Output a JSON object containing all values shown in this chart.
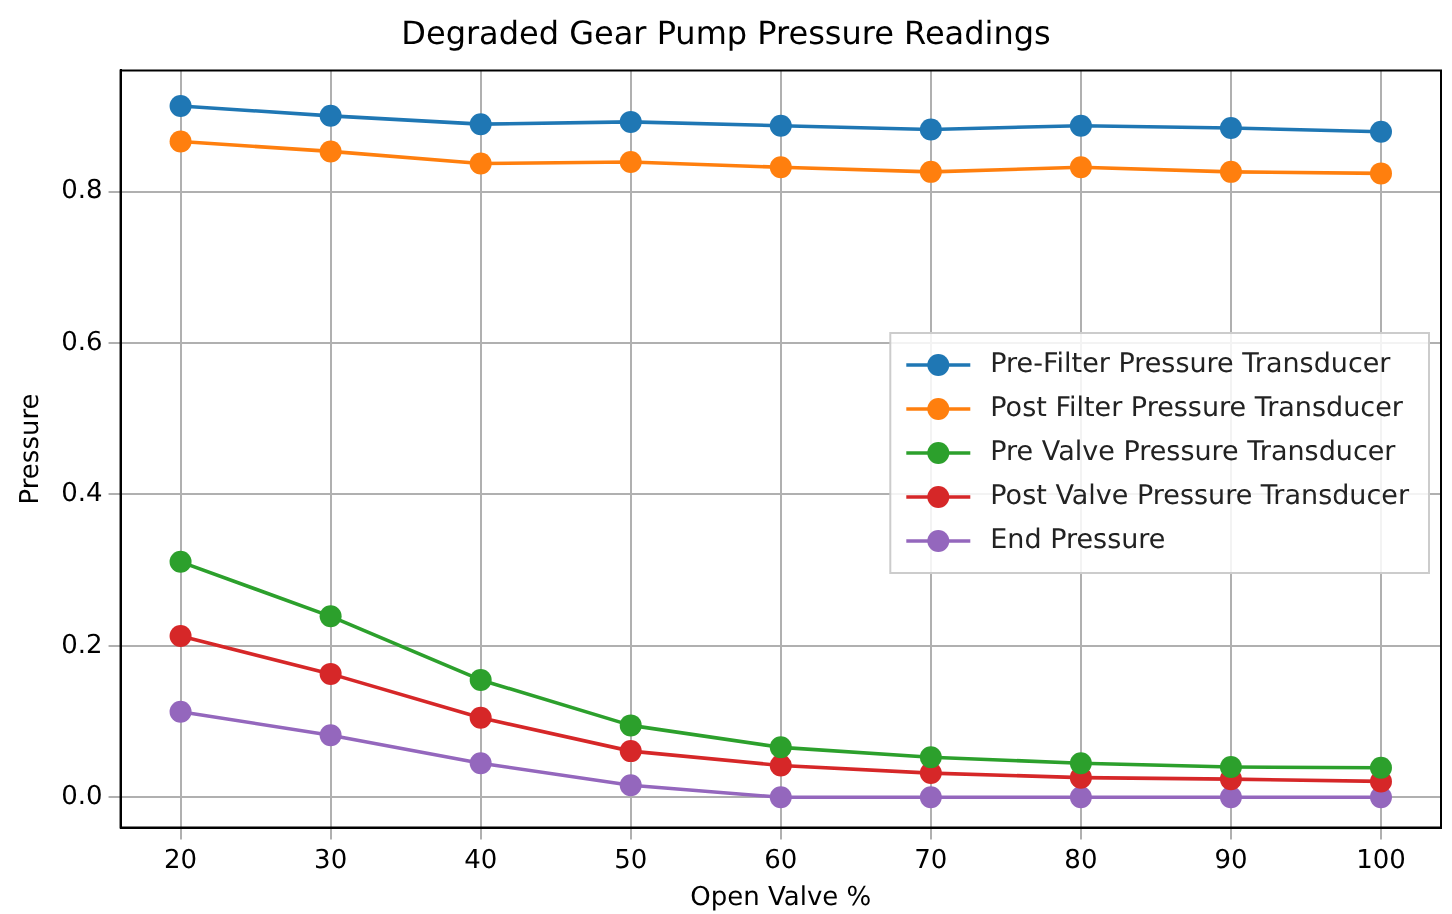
{
  "chart_data": {
    "type": "line",
    "title": "Degraded Gear Pump Pressure Readings",
    "xlabel": "Open Valve %",
    "ylabel": "Pressure",
    "x": [
      20,
      30,
      40,
      50,
      60,
      70,
      80,
      90,
      100
    ],
    "series": [
      {
        "name": "Pre-Filter Pressure Transducer",
        "color": "#1f77b4",
        "values": [
          0.913,
          0.9,
          0.889,
          0.892,
          0.887,
          0.882,
          0.887,
          0.884,
          0.879
        ]
      },
      {
        "name": "Post Filter Pressure Transducer",
        "color": "#ff7f0e",
        "values": [
          0.866,
          0.853,
          0.837,
          0.839,
          0.832,
          0.826,
          0.832,
          0.826,
          0.824
        ]
      },
      {
        "name": "Pre Valve Pressure Transducer",
        "color": "#2ca02c",
        "values": [
          0.311,
          0.239,
          0.155,
          0.095,
          0.066,
          0.053,
          0.045,
          0.04,
          0.039
        ]
      },
      {
        "name": "Post Valve Pressure Transducer",
        "color": "#d62728",
        "values": [
          0.213,
          0.163,
          0.105,
          0.061,
          0.042,
          0.032,
          0.026,
          0.024,
          0.021
        ]
      },
      {
        "name": "End Pressure",
        "color": "#9467bd",
        "values": [
          0.113,
          0.082,
          0.045,
          0.016,
          0,
          0,
          0,
          0,
          0
        ]
      }
    ],
    "xlim": [
      16,
      104
    ],
    "xticks": [
      20,
      30,
      40,
      50,
      60,
      70,
      80,
      90,
      100
    ],
    "ylim": [
      -0.04,
      0.96
    ],
    "yticks": [
      {
        "value": 0,
        "label": "0.0"
      },
      {
        "value": 0.2,
        "label": "0.2"
      },
      {
        "value": 0.4,
        "label": "0.4"
      },
      {
        "value": 0.6,
        "label": "0.6"
      },
      {
        "value": 0.8,
        "label": "0.8"
      }
    ],
    "grid": true,
    "legend": "right",
    "marker": "circle",
    "line_style": "solid"
  }
}
